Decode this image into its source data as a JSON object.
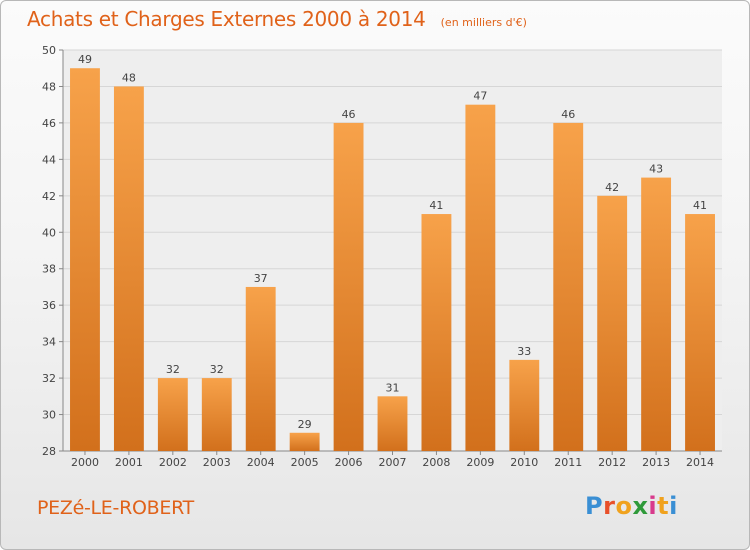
{
  "chart_data": {
    "type": "bar",
    "title": "Achats et Charges Externes 2000 à 2014",
    "unit": "(en milliers d'€)",
    "categories": [
      "2000",
      "2001",
      "2002",
      "2003",
      "2004",
      "2005",
      "2006",
      "2007",
      "2008",
      "2009",
      "2010",
      "2011",
      "2012",
      "2013",
      "2014"
    ],
    "values": [
      49,
      48,
      32,
      32,
      37,
      29,
      46,
      31,
      41,
      47,
      33,
      46,
      42,
      43,
      41
    ],
    "ylim": [
      28,
      50
    ],
    "yticks": [
      28,
      30,
      32,
      34,
      36,
      38,
      40,
      42,
      44,
      46,
      48,
      50
    ],
    "grid": true,
    "bar_color_top": "#f7a24a",
    "bar_color_bottom": "#d2701c",
    "data_labels": true
  },
  "commune": "PEZé-LE-ROBERT",
  "logo": {
    "text": "Proxiti",
    "letter_colors": [
      "#3a8fd4",
      "#e8502a",
      "#f0a21e",
      "#2f9a3a",
      "#d83a8c",
      "#f0a21e",
      "#3a8fd4"
    ]
  },
  "colors": {
    "accent": "#e0621a",
    "grid": "#d6d6d6",
    "plot_bg": "#eeeeee"
  }
}
